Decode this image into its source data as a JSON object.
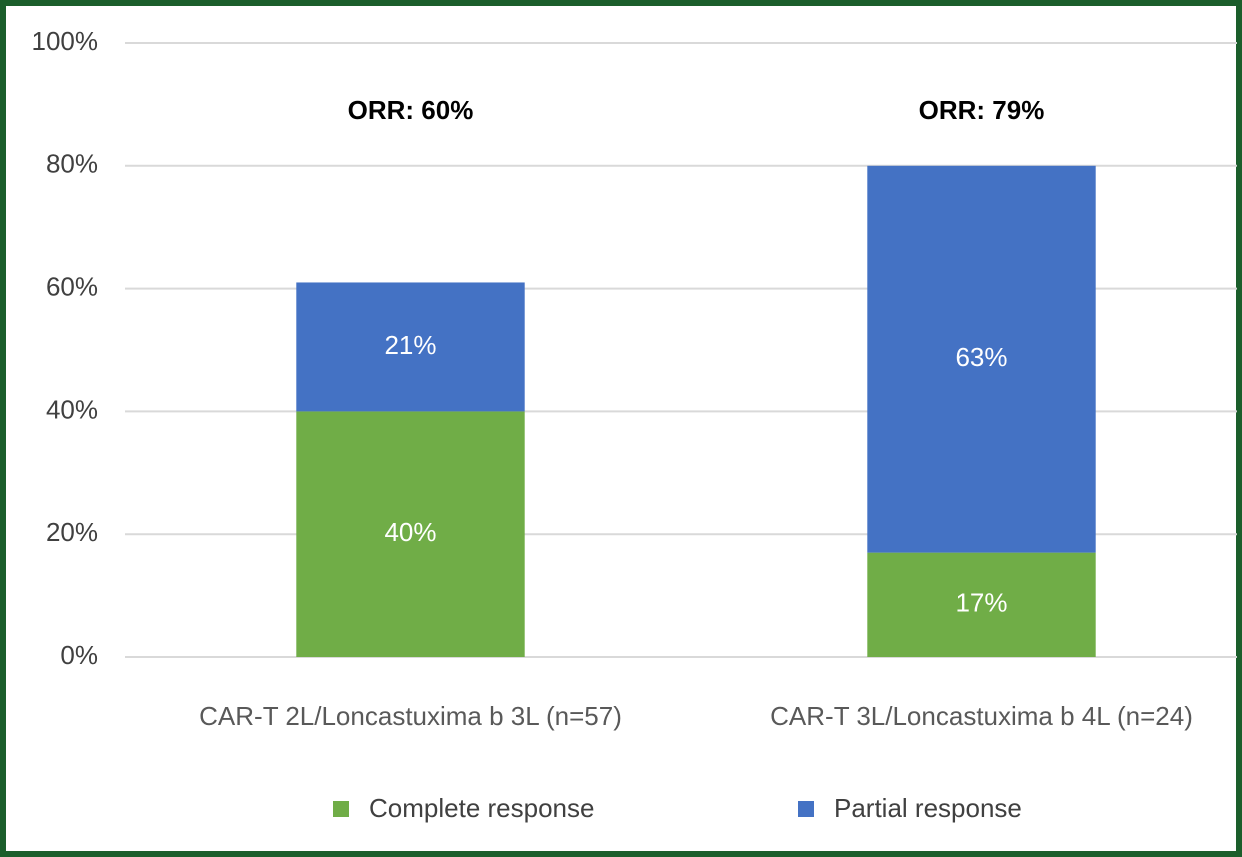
{
  "chart_data": {
    "type": "stacked_bar",
    "categories": [
      "CAR-T 2L/Loncastuxima b 3L (n=57)",
      "CAR-T 3L/Loncastuxima b 4L (n=24)"
    ],
    "series": [
      {
        "name": "Complete response",
        "color": "#70ad47",
        "values": [
          40,
          17
        ],
        "value_labels": [
          "40%",
          "17%"
        ]
      },
      {
        "name": "Partial response",
        "color": "#4472c4",
        "values": [
          21,
          63
        ],
        "value_labels": [
          "21%",
          "63%"
        ]
      }
    ],
    "annotations": [
      "ORR: 60%",
      "ORR: 79%"
    ],
    "ylim": [
      0,
      100
    ],
    "yticks": [
      {
        "value": 0,
        "label": "0%"
      },
      {
        "value": 20,
        "label": "20%"
      },
      {
        "value": 40,
        "label": "40%"
      },
      {
        "value": 60,
        "label": "60%"
      },
      {
        "value": 80,
        "label": "80%"
      },
      {
        "value": 100,
        "label": "100%"
      }
    ],
    "grid": true,
    "legend": "bottom"
  }
}
